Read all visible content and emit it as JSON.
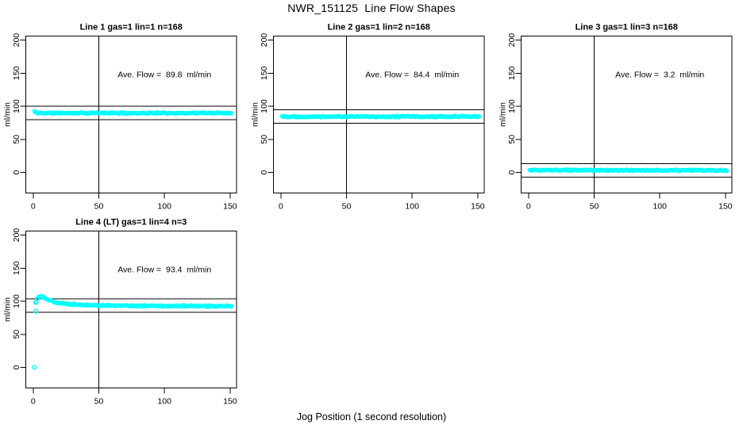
{
  "window": {
    "background": "#ffffff"
  },
  "header": {
    "title": "NWR_151125  Line Flow Shapes"
  },
  "footer": {
    "xlabel": "Jog Position (1 second resolution)"
  },
  "chart_data": [
    {
      "type": "scatter",
      "grid": {
        "row": 0,
        "col": 0
      },
      "title": "Line 1 gas=1 lin=1 n=168",
      "ylabel": "ml/min",
      "annotation": "Ave. Flow =  89.8  ml/min",
      "annotation_pos": {
        "x": 100,
        "y": 148
      },
      "ave_flow": 89.8,
      "n_points": 168,
      "point_color": "#00FFFF",
      "line_color": "#000000",
      "xlim": [
        -5.6,
        154.9
      ],
      "ylim": [
        -31,
        206
      ],
      "xticks": [
        0,
        50,
        100,
        150
      ],
      "yticks": [
        0,
        50,
        100,
        150,
        200
      ],
      "ref_lines_h": [
        99.8,
        79.8
      ],
      "ref_line_v": 50,
      "seed": 11,
      "band": {
        "x_start": 1,
        "x_end": 151,
        "jitter": 1.2,
        "profile": [
          [
            1,
            92.5
          ],
          [
            2,
            90.5
          ],
          [
            4,
            89.8
          ],
          [
            151,
            89.8
          ]
        ]
      },
      "outliers": []
    },
    {
      "type": "scatter",
      "grid": {
        "row": 0,
        "col": 1
      },
      "title": "Line 2 gas=1 lin=2 n=168",
      "ylabel": "ml/min",
      "annotation": "Ave. Flow =  84.4  ml/min",
      "annotation_pos": {
        "x": 100,
        "y": 148
      },
      "ave_flow": 84.4,
      "n_points": 168,
      "point_color": "#00FFFF",
      "line_color": "#000000",
      "xlim": [
        -5.6,
        154.9
      ],
      "ylim": [
        -31,
        206
      ],
      "xticks": [
        0,
        50,
        100,
        150
      ],
      "yticks": [
        0,
        50,
        100,
        150,
        200
      ],
      "ref_lines_h": [
        94.4,
        74.4
      ],
      "ref_line_v": 50,
      "seed": 22,
      "band": {
        "x_start": 1,
        "x_end": 151,
        "jitter": 1.2,
        "profile": [
          [
            1,
            85.2
          ],
          [
            3,
            84.4
          ],
          [
            151,
            84.4
          ]
        ]
      },
      "outliers": []
    },
    {
      "type": "scatter",
      "grid": {
        "row": 0,
        "col": 2
      },
      "title": "Line 3 gas=1 lin=3 n=168",
      "ylabel": "ml/min",
      "annotation": "Ave. Flow =  3.2  ml/min",
      "annotation_pos": {
        "x": 100,
        "y": 148
      },
      "ave_flow": 3.2,
      "n_points": 168,
      "point_color": "#00FFFF",
      "line_color": "#000000",
      "xlim": [
        -5.6,
        154.9
      ],
      "ylim": [
        -31,
        206
      ],
      "xticks": [
        0,
        50,
        100,
        150
      ],
      "yticks": [
        0,
        50,
        100,
        150,
        200
      ],
      "ref_lines_h": [
        13.2,
        -6.8
      ],
      "ref_line_v": 50,
      "seed": 33,
      "band": {
        "x_start": 1,
        "x_end": 151,
        "jitter": 1.2,
        "profile": [
          [
            1,
            3.4
          ],
          [
            151,
            3.2
          ]
        ]
      },
      "outliers": []
    },
    {
      "type": "scatter",
      "grid": {
        "row": 1,
        "col": 0
      },
      "title": "Line 4 (LT) gas=1 lin=4 n=3",
      "ylabel": "ml/min",
      "annotation": "Ave. Flow =  93.4  ml/min",
      "annotation_pos": {
        "x": 100,
        "y": 148
      },
      "ave_flow": 93.4,
      "n_points": 165,
      "point_color": "#00FFFF",
      "line_color": "#000000",
      "xlim": [
        -5.6,
        154.9
      ],
      "ylim": [
        -31,
        206
      ],
      "xticks": [
        0,
        50,
        100,
        150
      ],
      "yticks": [
        0,
        50,
        100,
        150,
        200
      ],
      "ref_lines_h": [
        103.4,
        83.4
      ],
      "ref_line_v": 50,
      "seed": 44,
      "band": {
        "x_start": 2.5,
        "x_end": 151,
        "jitter": 1.3,
        "profile": [
          [
            2.5,
            99
          ],
          [
            3,
            103
          ],
          [
            4,
            106.5
          ],
          [
            5,
            107.5
          ],
          [
            6.5,
            107
          ],
          [
            8,
            105.5
          ],
          [
            10,
            103.5
          ],
          [
            13,
            101
          ],
          [
            16,
            99
          ],
          [
            20,
            97.3
          ],
          [
            25,
            96
          ],
          [
            30,
            95.2
          ],
          [
            40,
            94.3
          ],
          [
            50,
            93.8
          ],
          [
            70,
            93.2
          ],
          [
            100,
            92.8
          ],
          [
            151,
            92.4
          ]
        ]
      },
      "outliers": [
        [
          1,
          0
        ],
        [
          2,
          85
        ],
        [
          2,
          98
        ]
      ]
    }
  ]
}
